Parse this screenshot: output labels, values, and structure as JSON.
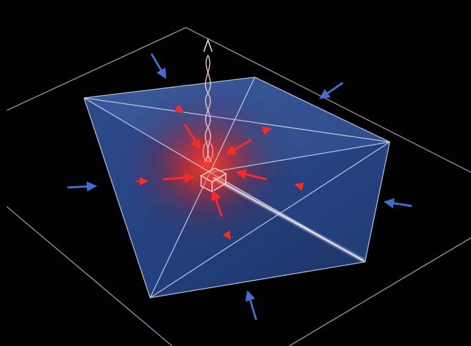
{
  "scene": {
    "subject": "translucent-polyhedron-with-converging-arrows",
    "colors": {
      "background": "#000000",
      "frame_line": "#bfc6d6",
      "face_fill": "#2b4f95",
      "edge": "#d9e4ff",
      "outer_arrow": "#3f6fd1",
      "inner_arrow": "#ff2a24",
      "glow": "#ff2d1a"
    },
    "icons": {
      "outer_arrow": "arrow-pointing-inward-icon",
      "inner_arrow": "arrow-pointing-to-center-icon",
      "twisted_beam": "helical-beam-icon"
    }
  }
}
